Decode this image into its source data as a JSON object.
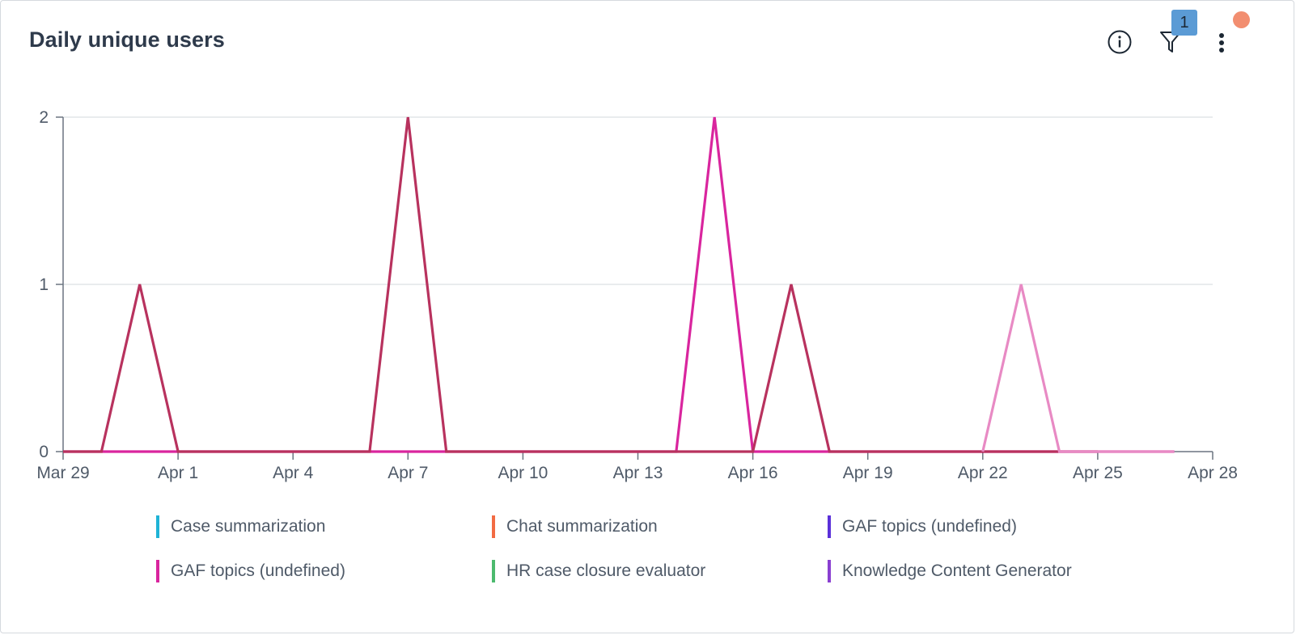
{
  "widget": {
    "title": "Daily unique users",
    "filter_count": "1",
    "icons": {
      "info": "info-circle-icon",
      "filter": "filter-funnel-icon",
      "more": "kebab-menu-icon",
      "notification": "notification-dot"
    },
    "notification_color": "#f28e70",
    "badge_color": "#5b9bd5"
  },
  "chart_data": {
    "type": "line",
    "title": "Daily unique users",
    "xlabel": "",
    "ylabel": "",
    "x_tick_labels": [
      "Mar 29",
      "Apr 1",
      "Apr 4",
      "Apr 7",
      "Apr 10",
      "Apr 13",
      "Apr 16",
      "Apr 19",
      "Apr 22",
      "Apr 25",
      "Apr 28"
    ],
    "y_tick_labels": [
      "0",
      "1",
      "2"
    ],
    "xlim": [
      "Mar 29",
      "Apr 28"
    ],
    "ylim": [
      0,
      2
    ],
    "grid": true,
    "legend_position": "bottom",
    "series": [
      {
        "name": "Case summarization",
        "color": "#1fb3d6",
        "points": []
      },
      {
        "name": "Chat summarization",
        "color": "#f26b43",
        "points": []
      },
      {
        "name": "GAF topics (undefined)",
        "color": "#5b30d9",
        "points": []
      },
      {
        "name": "GAF topics (undefined)",
        "color": "#d9259e",
        "points": [
          [
            "Mar 29",
            0
          ],
          [
            "Apr 14",
            0
          ],
          [
            "Apr 15",
            2
          ],
          [
            "Apr 16",
            0
          ],
          [
            "Apr 27",
            0
          ]
        ]
      },
      {
        "name": "HR case closure evaluator",
        "color": "#4cba6e",
        "points": []
      },
      {
        "name": "Knowledge Content Generator",
        "color": "#8a3fd1",
        "points": []
      },
      {
        "name": "",
        "color": "#b8325e",
        "points": [
          [
            "Mar 29",
            0
          ],
          [
            "Mar 30",
            0
          ],
          [
            "Mar 31",
            1
          ],
          [
            "Apr 1",
            0
          ],
          [
            "Apr 6",
            0
          ],
          [
            "Apr 7",
            2
          ],
          [
            "Apr 8",
            0
          ],
          [
            "Apr 16",
            0
          ],
          [
            "Apr 17",
            1
          ],
          [
            "Apr 18",
            0
          ],
          [
            "Apr 25",
            0
          ]
        ]
      },
      {
        "name": "",
        "color": "#e88ac4",
        "points": [
          [
            "Apr 22",
            0
          ],
          [
            "Apr 23",
            1
          ],
          [
            "Apr 24",
            0
          ],
          [
            "Apr 27",
            0
          ]
        ]
      }
    ]
  }
}
